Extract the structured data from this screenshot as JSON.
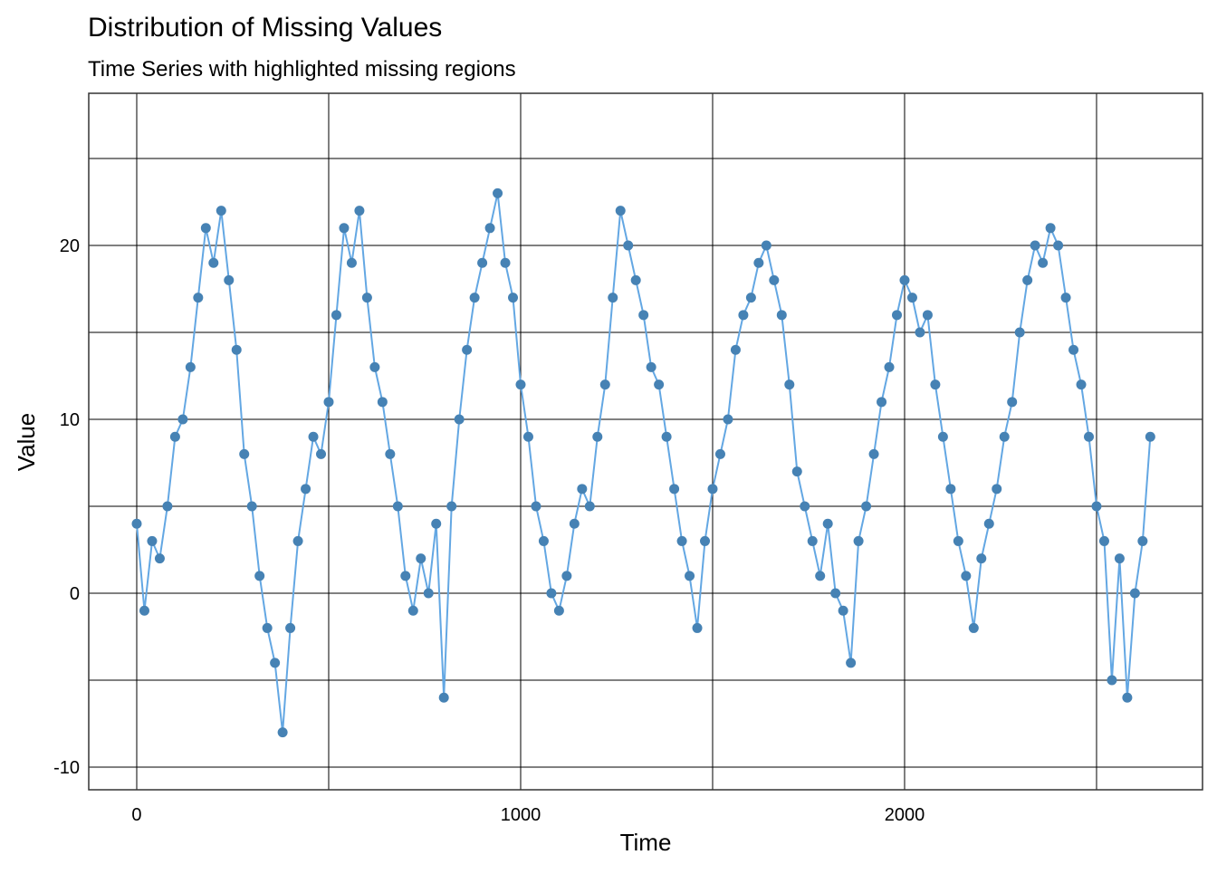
{
  "chart_data": {
    "type": "line",
    "title": "Distribution of Missing Values",
    "subtitle": "Time Series with highlighted missing regions",
    "x_label": "Time",
    "y_label": "Value",
    "xlim": [
      -125,
      2776
    ],
    "ylim": [
      -11.3,
      28.75
    ],
    "xticks": [
      0,
      1000,
      2000
    ],
    "minor_xticks": [
      500,
      1500,
      2500
    ],
    "yticks": [
      -10,
      0,
      10,
      20
    ],
    "minor_yticks": [
      -5,
      5,
      15,
      25
    ],
    "grid": true,
    "line_color": "#63a7e3",
    "point_color": "#4682b4",
    "x": [
      0,
      20,
      40,
      60,
      80,
      100,
      120,
      140,
      160,
      180,
      200,
      220,
      240,
      260,
      280,
      300,
      320,
      340,
      360,
      380,
      400,
      420,
      440,
      460,
      480,
      500,
      520,
      540,
      560,
      580,
      600,
      620,
      640,
      660,
      680,
      700,
      720,
      740,
      760,
      780,
      800,
      820,
      840,
      860,
      880,
      900,
      920,
      940,
      960,
      980,
      1000,
      1020,
      1040,
      1060,
      1080,
      1100,
      1120,
      1140,
      1160,
      1180,
      1200,
      1220,
      1240,
      1260,
      1280,
      1300,
      1320,
      1340,
      1360,
      1380,
      1400,
      1420,
      1440,
      1460,
      1480,
      1500,
      1520,
      1540,
      1560,
      1580,
      1600,
      1620,
      1640,
      1660,
      1680,
      1700,
      1720,
      1740,
      1760,
      1780,
      1800,
      1820,
      1840,
      1860,
      1880,
      1900,
      1920,
      1940,
      1960,
      1980,
      2000,
      2020,
      2040,
      2060,
      2080,
      2100,
      2120,
      2140,
      2160,
      2180,
      2200,
      2220,
      2240,
      2260,
      2280,
      2300,
      2320,
      2340,
      2360,
      2380,
      2400,
      2420,
      2440,
      2460,
      2480,
      2500,
      2520,
      2540,
      2560,
      2580,
      2600,
      2620,
      2640
    ],
    "values": [
      4,
      -1,
      3,
      2,
      5,
      9,
      10,
      13,
      17,
      21,
      19,
      22,
      18,
      14,
      8,
      5,
      1,
      -2,
      -4,
      -8,
      -2,
      3,
      6,
      9,
      8,
      11,
      16,
      21,
      19,
      22,
      17,
      13,
      11,
      8,
      5,
      1,
      -1,
      2,
      0,
      4,
      -6,
      5,
      10,
      14,
      17,
      19,
      21,
      23,
      19,
      17,
      12,
      9,
      5,
      3,
      0,
      -1,
      1,
      4,
      6,
      5,
      9,
      12,
      17,
      22,
      20,
      18,
      16,
      13,
      12,
      9,
      6,
      3,
      1,
      -2,
      3,
      6,
      8,
      10,
      14,
      16,
      17,
      19,
      20,
      18,
      16,
      12,
      7,
      5,
      3,
      1,
      4,
      0,
      -1,
      -4,
      3,
      5,
      8,
      11,
      13,
      16,
      18,
      17,
      15,
      16,
      12,
      9,
      6,
      3,
      1,
      -2,
      2,
      4,
      6,
      9,
      11,
      15,
      18,
      20,
      19,
      21,
      20,
      17,
      14,
      12,
      9,
      5,
      3,
      -5,
      2,
      -6,
      0,
      3,
      9
    ]
  }
}
